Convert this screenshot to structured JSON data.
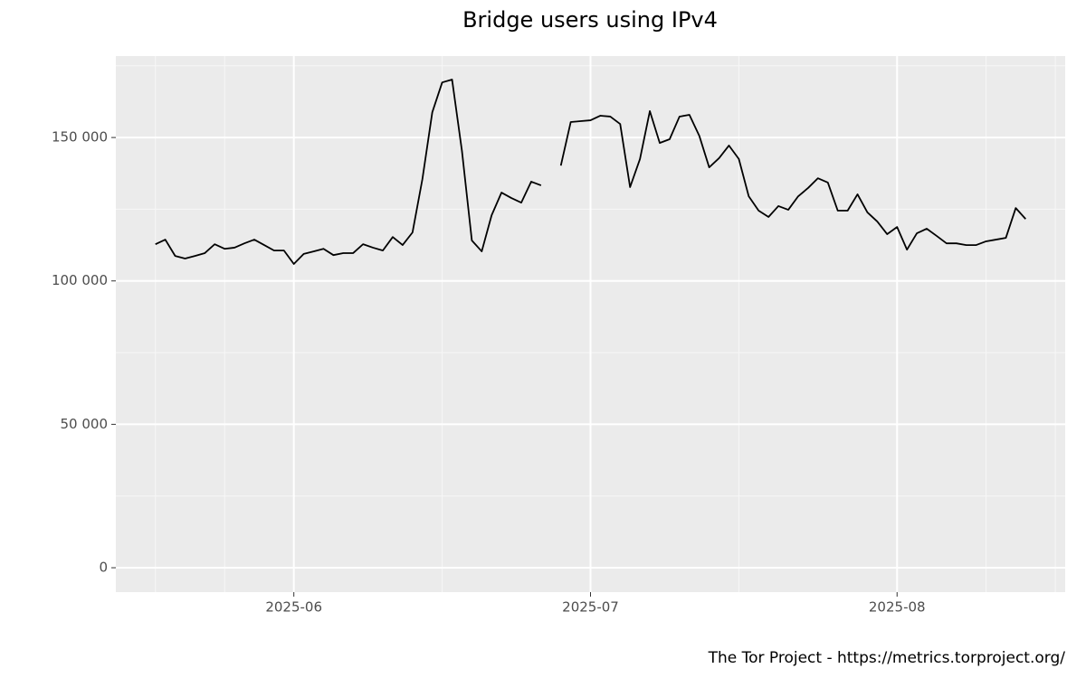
{
  "chart_data": {
    "type": "line",
    "title": "Bridge users using IPv4",
    "caption": "The Tor Project - https://metrics.torproject.org/",
    "x": [
      "2025-05-18",
      "2025-05-19",
      "2025-05-20",
      "2025-05-21",
      "2025-05-22",
      "2025-05-23",
      "2025-05-24",
      "2025-05-25",
      "2025-05-26",
      "2025-05-27",
      "2025-05-28",
      "2025-05-29",
      "2025-05-30",
      "2025-05-31",
      "2025-06-01",
      "2025-06-02",
      "2025-06-03",
      "2025-06-04",
      "2025-06-05",
      "2025-06-06",
      "2025-06-07",
      "2025-06-08",
      "2025-06-09",
      "2025-06-10",
      "2025-06-11",
      "2025-06-12",
      "2025-06-13",
      "2025-06-14",
      "2025-06-15",
      "2025-06-16",
      "2025-06-17",
      "2025-06-18",
      "2025-06-19",
      "2025-06-20",
      "2025-06-21",
      "2025-06-22",
      "2025-06-23",
      "2025-06-24",
      "2025-06-25",
      "2025-06-26",
      "2025-06-27",
      "2025-06-28",
      "2025-06-29",
      "2025-06-30",
      "2025-07-01",
      "2025-07-02",
      "2025-07-03",
      "2025-07-04",
      "2025-07-05",
      "2025-07-06",
      "2025-07-07",
      "2025-07-08",
      "2025-07-09",
      "2025-07-10",
      "2025-07-11",
      "2025-07-12",
      "2025-07-13",
      "2025-07-14",
      "2025-07-15",
      "2025-07-16",
      "2025-07-17",
      "2025-07-18",
      "2025-07-19",
      "2025-07-20",
      "2025-07-21",
      "2025-07-22",
      "2025-07-23",
      "2025-07-24",
      "2025-07-25",
      "2025-07-26",
      "2025-07-27",
      "2025-07-28",
      "2025-07-29",
      "2025-07-30",
      "2025-07-31",
      "2025-08-01",
      "2025-08-02",
      "2025-08-03",
      "2025-08-04",
      "2025-08-05",
      "2025-08-06",
      "2025-08-07",
      "2025-08-08",
      "2025-08-09",
      "2025-08-10",
      "2025-08-11",
      "2025-08-12",
      "2025-08-13",
      "2025-08-14"
    ],
    "series": [
      {
        "color": "#000000",
        "values": [
          112800,
          114400,
          108700,
          107800,
          108700,
          109700,
          112800,
          111200,
          111600,
          113100,
          114400,
          112500,
          110600,
          110600,
          105900,
          109400,
          110300,
          111200,
          109000,
          109700,
          109700,
          112800,
          111600,
          110600,
          115300,
          112500,
          116900,
          135500,
          158800,
          169200,
          170200,
          145300,
          114100,
          110300,
          122900,
          130800,
          128900,
          127300,
          134600,
          133300,
          null,
          140200,
          155400,
          155700,
          156000,
          157600,
          157300,
          154700,
          132700,
          142500,
          159200,
          148100,
          149400,
          157300,
          157900,
          150600,
          139600,
          142800,
          147200,
          142500,
          129500,
          124500,
          122300,
          126100,
          124800,
          129500,
          132400,
          135800,
          134300,
          124500,
          124500,
          130200,
          123900,
          120700,
          116300,
          118800,
          110900,
          116600,
          118200,
          115700,
          113100,
          113100,
          112500,
          112500,
          113800,
          114400,
          115000,
          125400,
          121600
        ]
      }
    ],
    "xlim": [
      "2025-05-14",
      "2025-08-18"
    ],
    "xticks": [
      {
        "value": "2025-06-01",
        "label": "2025-06"
      },
      {
        "value": "2025-07-01",
        "label": "2025-07"
      },
      {
        "value": "2025-08-01",
        "label": "2025-08"
      }
    ],
    "xticks_minor": [
      "2025-05-18",
      "2025-05-25",
      "2025-06-16",
      "2025-07-16",
      "2025-08-10",
      "2025-08-17"
    ],
    "ylim": [
      -8500,
      178400
    ],
    "yticks": [
      0,
      {
        "value": 50000,
        "label": "50 000"
      },
      {
        "value": 100000,
        "label": "100 000"
      },
      {
        "value": 150000,
        "label": "150 000"
      }
    ],
    "yticks_minor": [
      25000,
      75000,
      125000,
      175000
    ],
    "grid": true
  }
}
